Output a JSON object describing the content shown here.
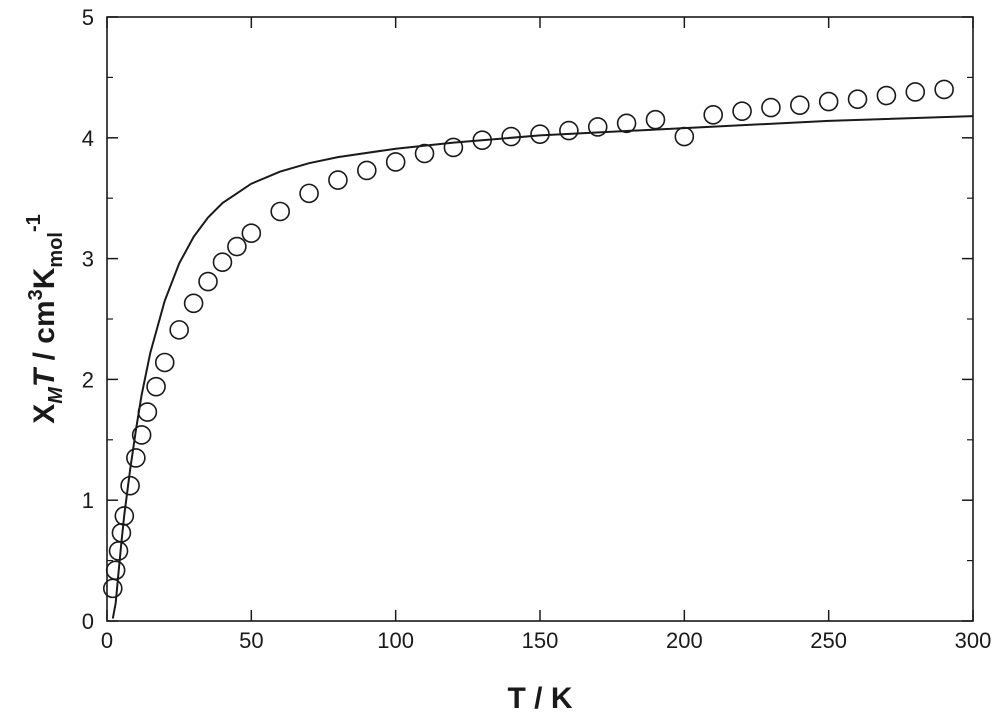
{
  "chart_data": {
    "type": "scatter",
    "xlabel": "T / K",
    "ylabel": {
      "chi": "X",
      "chi_sub": "M",
      "T": "T",
      "unit_a": " / cm",
      "unit_sup": "3",
      "unit_b": "K",
      "unit_sub": "mol",
      "unit_sup2": "-1"
    },
    "xlim": [
      0,
      300
    ],
    "ylim": [
      0,
      5
    ],
    "x_ticks": [
      0,
      50,
      100,
      150,
      200,
      250,
      300
    ],
    "y_ticks": [
      0,
      1,
      2,
      3,
      4,
      5
    ],
    "grid": false,
    "series": [
      {
        "style": "open-circle",
        "x": [
          2,
          3,
          4,
          5,
          6,
          8,
          10,
          12,
          14,
          17,
          20,
          25,
          30,
          35,
          40,
          45,
          50,
          60,
          70,
          80,
          90,
          100,
          110,
          120,
          130,
          140,
          150,
          160,
          170,
          180,
          190,
          200,
          210,
          220,
          230,
          240,
          250,
          260,
          270,
          280,
          290
        ],
        "y": [
          0.27,
          0.42,
          0.58,
          0.73,
          0.87,
          1.12,
          1.35,
          1.54,
          1.73,
          1.94,
          2.14,
          2.41,
          2.63,
          2.81,
          2.97,
          3.1,
          3.21,
          3.39,
          3.54,
          3.65,
          3.73,
          3.8,
          3.87,
          3.92,
          3.98,
          4.01,
          4.03,
          4.06,
          4.09,
          4.12,
          4.15,
          4.01,
          4.19,
          4.22,
          4.25,
          4.27,
          4.3,
          4.32,
          4.35,
          4.38,
          4.4
        ]
      },
      {
        "style": "line",
        "x": [
          2,
          3,
          4,
          5,
          6,
          8,
          10,
          12,
          15,
          20,
          25,
          30,
          35,
          40,
          50,
          60,
          70,
          80,
          100,
          120,
          150,
          200,
          250,
          300
        ],
        "y": [
          0.02,
          0.15,
          0.4,
          0.65,
          0.88,
          1.25,
          1.58,
          1.87,
          2.22,
          2.65,
          2.96,
          3.18,
          3.34,
          3.46,
          3.62,
          3.72,
          3.79,
          3.84,
          3.91,
          3.96,
          4.02,
          4.08,
          4.14,
          4.18
        ]
      }
    ]
  }
}
